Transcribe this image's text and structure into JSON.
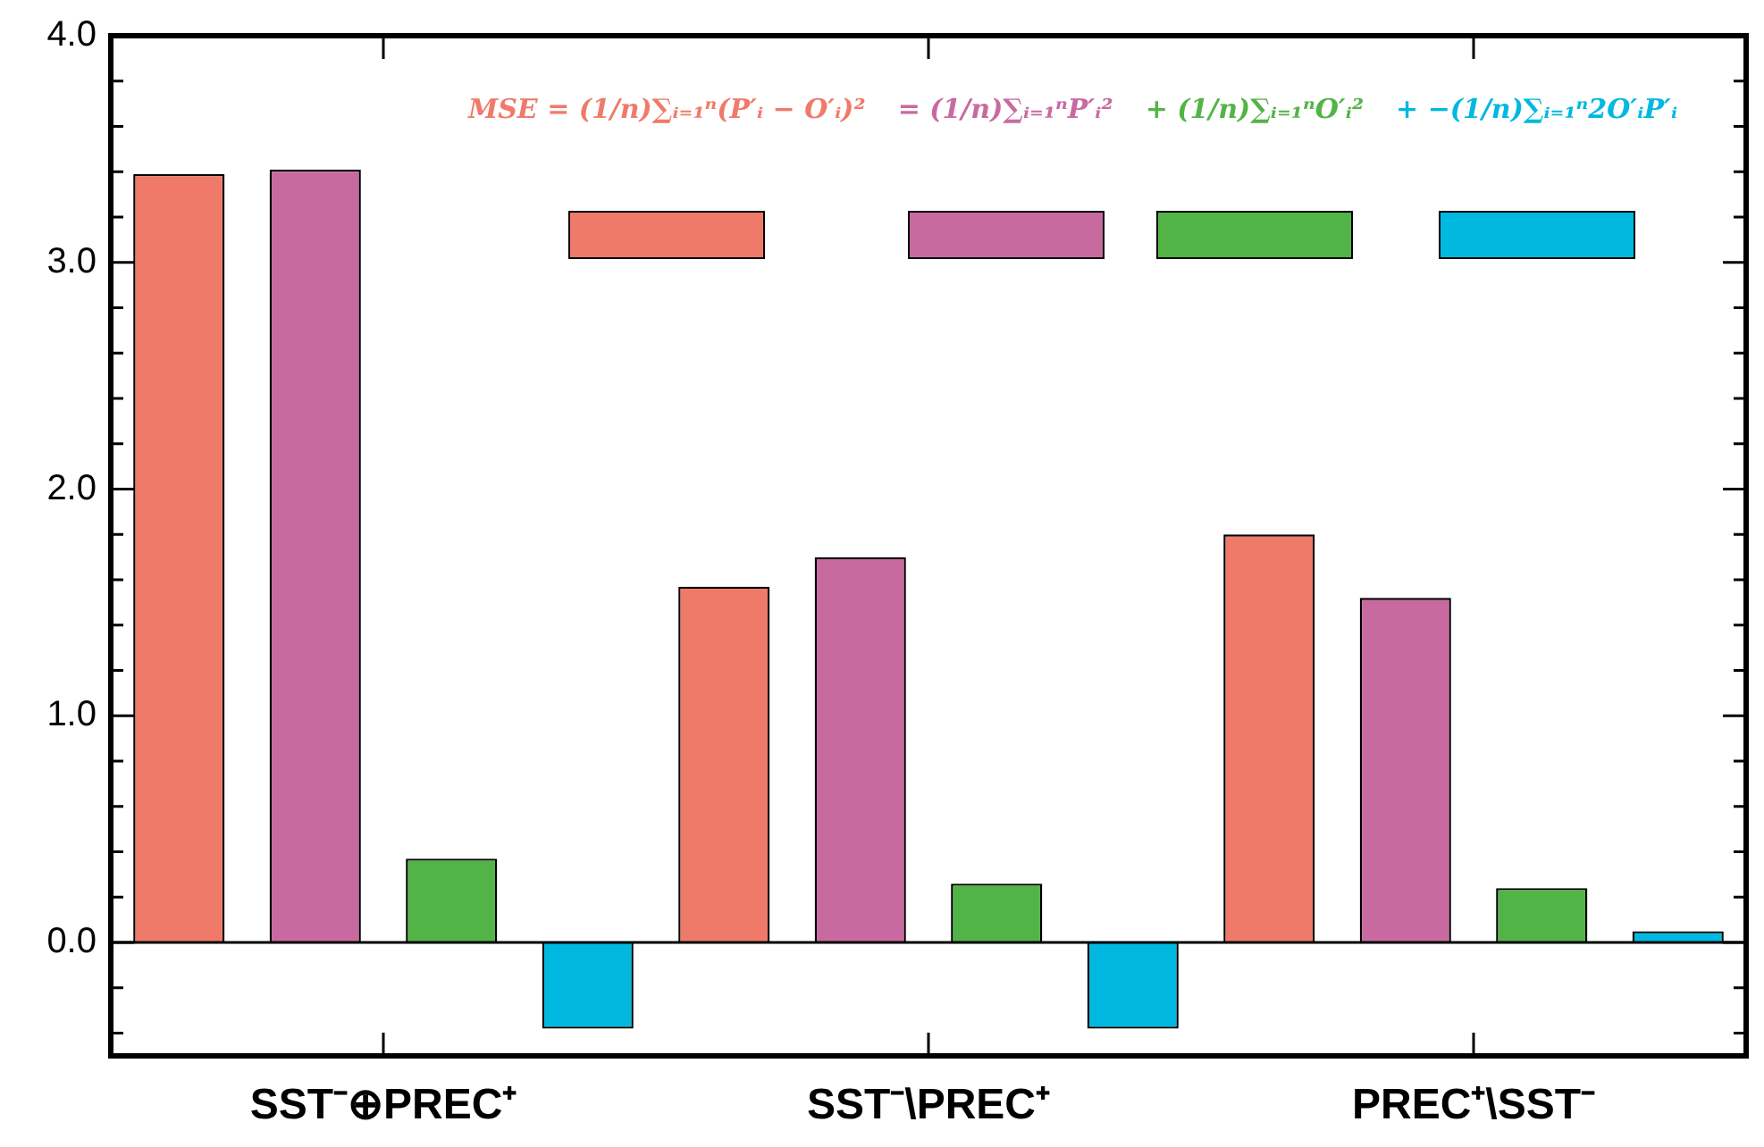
{
  "chart_data": {
    "type": "bar",
    "categories": [
      "SST⁻⊕PREC⁺",
      "SST⁻\\PREC⁺",
      "PREC⁺\\SST⁻"
    ],
    "series": [
      {
        "name": "MSE = (1/n)∑ᵢ₌₁ⁿ(P′ᵢ − O′ᵢ)²",
        "color": "#f07a6a",
        "values": [
          3.39,
          1.57,
          1.8
        ]
      },
      {
        "name": "= (1/n)∑ᵢ₌₁ⁿP′ᵢ²",
        "color": "#c86aa0",
        "values": [
          3.41,
          1.7,
          1.52
        ]
      },
      {
        "name": "+ (1/n)∑ᵢ₌₁ⁿO′ᵢ²",
        "color": "#52b446",
        "values": [
          0.37,
          0.26,
          0.24
        ]
      },
      {
        "name": "+ −(1/n)∑ᵢ₌₁ⁿ2O′ᵢP′ᵢ",
        "color": "#00b8e0",
        "values": [
          -0.38,
          -0.38,
          0.05
        ]
      }
    ],
    "ylim": [
      -0.5,
      4.0
    ],
    "yticks": [
      {
        "value": -0.4,
        "label": null
      },
      {
        "value": -0.2,
        "label": null
      },
      {
        "value": 0,
        "label": "0.0"
      },
      {
        "value": 0.2,
        "label": null
      },
      {
        "value": 0.4,
        "label": null
      },
      {
        "value": 0.6,
        "label": null
      },
      {
        "value": 0.8,
        "label": null
      },
      {
        "value": 1,
        "label": "1.0"
      },
      {
        "value": 1.2,
        "label": null
      },
      {
        "value": 1.4,
        "label": null
      },
      {
        "value": 1.6,
        "label": null
      },
      {
        "value": 1.8,
        "label": null
      },
      {
        "value": 2,
        "label": "2.0"
      },
      {
        "value": 2.2,
        "label": null
      },
      {
        "value": 2.4,
        "label": null
      },
      {
        "value": 2.6,
        "label": null
      },
      {
        "value": 2.8,
        "label": null
      },
      {
        "value": 3,
        "label": "3.0"
      },
      {
        "value": 3.2,
        "label": null
      },
      {
        "value": 3.4,
        "label": null
      },
      {
        "value": 3.6,
        "label": null
      },
      {
        "value": 3.8,
        "label": null
      },
      {
        "value": 4,
        "label": "4.0"
      }
    ],
    "ref_lines": [
      {
        "axis": "y",
        "value": 0,
        "color": "#000000"
      }
    ],
    "grid": false,
    "legend": "top right"
  }
}
